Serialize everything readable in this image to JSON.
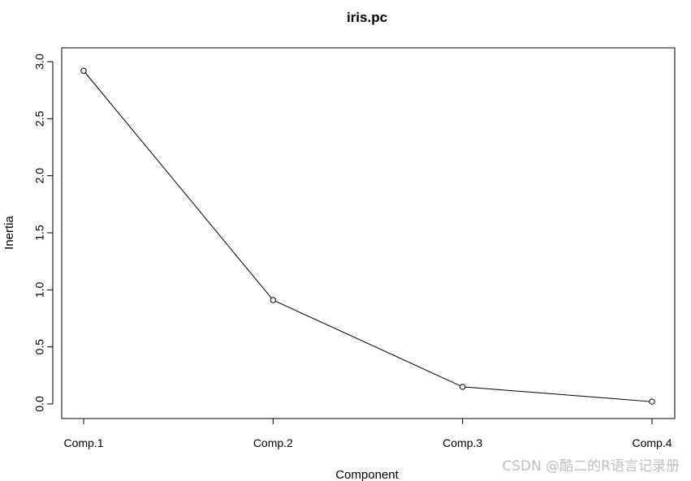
{
  "chart_data": {
    "type": "line",
    "title": "iris.pc",
    "xlabel": "Component",
    "ylabel": "Inertia",
    "categories": [
      "Comp.1",
      "Comp.2",
      "Comp.3",
      "Comp.4"
    ],
    "values": [
      2.92,
      0.91,
      0.15,
      0.02
    ],
    "ylim": [
      0,
      3.0
    ],
    "yticks": [
      "0.0",
      "0.5",
      "1.0",
      "1.5",
      "2.0",
      "2.5",
      "3.0"
    ],
    "grid": false,
    "marker": "open-circle",
    "line_color": "#000000"
  },
  "watermark": "CSDN @酷二的R语言记录册"
}
